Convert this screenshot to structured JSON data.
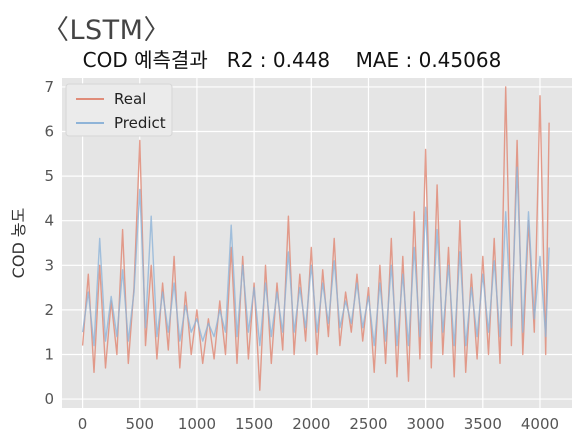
{
  "figure": {
    "label": "〈LSTM〉"
  },
  "chart_data": {
    "type": "line",
    "title": "COD 예측결과   R2 : 0.448    MAE : 0.45068",
    "xlabel": "",
    "ylabel": "COD 농도",
    "xlim": [
      -180,
      4280
    ],
    "ylim": [
      -0.2,
      7.2
    ],
    "xticks": [
      0,
      500,
      1000,
      1500,
      2000,
      2500,
      3000,
      3500,
      4000
    ],
    "yticks": [
      0,
      1,
      2,
      3,
      4,
      5,
      6,
      7
    ],
    "grid": true,
    "legend": "top-left",
    "x_step": 50,
    "series": [
      {
        "name": "Real",
        "color": "#e08c79",
        "x": [
          0,
          50,
          100,
          150,
          200,
          250,
          300,
          350,
          400,
          450,
          500,
          550,
          600,
          650,
          700,
          750,
          800,
          850,
          900,
          950,
          1000,
          1050,
          1100,
          1150,
          1200,
          1250,
          1300,
          1350,
          1400,
          1450,
          1500,
          1550,
          1600,
          1650,
          1700,
          1750,
          1800,
          1850,
          1900,
          1950,
          2000,
          2050,
          2100,
          2150,
          2200,
          2250,
          2300,
          2350,
          2400,
          2450,
          2500,
          2550,
          2600,
          2650,
          2700,
          2750,
          2800,
          2850,
          2900,
          2950,
          3000,
          3050,
          3100,
          3150,
          3200,
          3250,
          3300,
          3350,
          3400,
          3450,
          3500,
          3550,
          3600,
          3650,
          3700,
          3750,
          3800,
          3850,
          3900,
          3950,
          4000,
          4050,
          4080
        ],
        "values": [
          1.2,
          2.8,
          0.6,
          3.0,
          0.7,
          2.2,
          1.0,
          3.8,
          0.8,
          2.5,
          5.8,
          1.2,
          3.0,
          0.9,
          2.6,
          1.1,
          3.2,
          0.7,
          2.4,
          1.0,
          2.0,
          0.8,
          1.8,
          0.9,
          2.2,
          1.0,
          3.4,
          0.8,
          3.2,
          0.9,
          2.6,
          0.2,
          3.0,
          0.8,
          2.6,
          1.1,
          4.1,
          1.0,
          2.8,
          1.3,
          3.4,
          1.0,
          2.9,
          1.4,
          3.6,
          1.2,
          2.4,
          1.5,
          2.8,
          1.3,
          2.5,
          0.6,
          3.0,
          0.8,
          3.6,
          0.5,
          3.2,
          0.4,
          4.2,
          0.9,
          5.6,
          0.7,
          4.8,
          1.0,
          3.4,
          0.5,
          4.0,
          0.6,
          2.8,
          0.9,
          3.2,
          1.0,
          3.6,
          0.8,
          7.0,
          1.2,
          5.8,
          1.0,
          4.0,
          1.5,
          6.8,
          1.0,
          6.2
        ]
      },
      {
        "name": "Predict",
        "color": "#8fb4d8",
        "x": [
          0,
          50,
          100,
          150,
          200,
          250,
          300,
          350,
          400,
          450,
          500,
          550,
          600,
          650,
          700,
          750,
          800,
          850,
          900,
          950,
          1000,
          1050,
          1100,
          1150,
          1200,
          1250,
          1300,
          1350,
          1400,
          1450,
          1500,
          1550,
          1600,
          1650,
          1700,
          1750,
          1800,
          1850,
          1900,
          1950,
          2000,
          2050,
          2100,
          2150,
          2200,
          2250,
          2300,
          2350,
          2400,
          2450,
          2500,
          2550,
          2600,
          2650,
          2700,
          2750,
          2800,
          2850,
          2900,
          2950,
          3000,
          3050,
          3100,
          3150,
          3200,
          3250,
          3300,
          3350,
          3400,
          3450,
          3500,
          3550,
          3600,
          3650,
          3700,
          3750,
          3800,
          3850,
          3900,
          3950,
          4000,
          4050,
          4080
        ],
        "values": [
          1.5,
          2.4,
          1.2,
          3.6,
          1.3,
          2.3,
          1.4,
          2.9,
          1.3,
          2.4,
          4.7,
          1.6,
          4.1,
          1.4,
          2.4,
          1.5,
          2.6,
          1.3,
          2.1,
          1.5,
          1.8,
          1.3,
          1.7,
          1.4,
          2.0,
          1.5,
          3.9,
          1.4,
          3.0,
          1.5,
          2.5,
          1.2,
          2.6,
          1.4,
          2.4,
          1.5,
          3.3,
          1.5,
          2.5,
          1.6,
          3.0,
          1.5,
          2.6,
          1.7,
          3.1,
          1.6,
          2.2,
          1.7,
          2.6,
          1.6,
          2.3,
          1.2,
          2.6,
          1.3,
          3.0,
          1.2,
          2.8,
          1.2,
          3.4,
          1.4,
          4.3,
          1.3,
          3.8,
          1.5,
          3.0,
          1.2,
          3.3,
          1.2,
          2.5,
          1.4,
          2.8,
          1.5,
          3.1,
          1.4,
          4.2,
          1.6,
          5.2,
          1.5,
          4.2,
          1.8,
          3.2,
          1.4,
          3.4
        ]
      }
    ]
  }
}
